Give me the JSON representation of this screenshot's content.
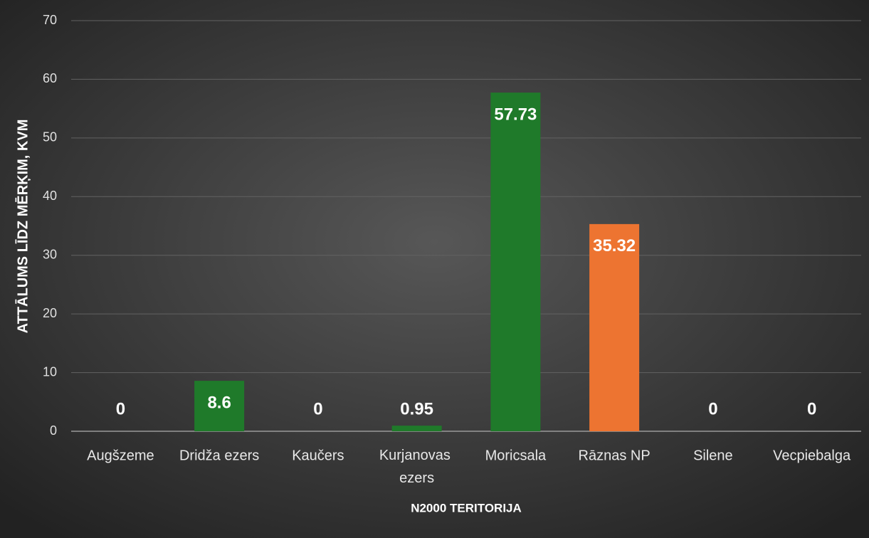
{
  "chart_data": {
    "type": "bar",
    "x_label": "N2000 TERITORIJA",
    "y_label": "ATTĀLUMS LĪDZ MĒRĶIM, KVM",
    "categories": [
      "Augšzeme",
      "Dridža ezers",
      "Kaučers",
      "Kurjanovas ezers",
      "Moricsala",
      "Rāznas NP",
      "Silene",
      "Vecpiebalga"
    ],
    "values": [
      0,
      8.6,
      0,
      0.95,
      57.73,
      35.32,
      0,
      0
    ],
    "colors": [
      "#1f7a2a",
      "#1f7a2a",
      "#1f7a2a",
      "#1f7a2a",
      "#1f7a2a",
      "#ed7431",
      "#1f7a2a",
      "#1f7a2a"
    ],
    "ylim": [
      0,
      70
    ],
    "yticks": [
      0,
      10,
      20,
      30,
      40,
      50,
      60,
      70
    ],
    "grid": true
  }
}
